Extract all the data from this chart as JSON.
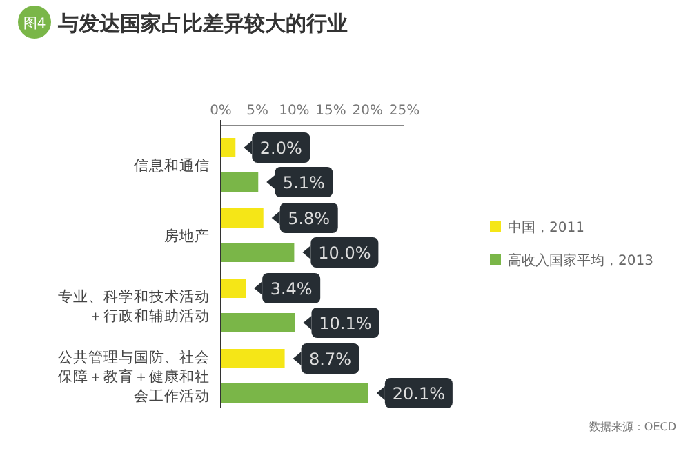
{
  "chart_data": {
    "type": "bar",
    "orientation": "horizontal",
    "title": "与发达国家占比差异较大的行业",
    "annotations": [
      "图4",
      "数据来源：OECD"
    ],
    "categories": [
      "信息和通信",
      "房地产",
      "专业、科学和技术活动＋行政和辅助活动",
      "公共管理与国防、社会保障＋教育＋健康和社会工作活动"
    ],
    "series": [
      {
        "name": "中国，2011",
        "color": "#f5e617",
        "values": [
          2.0,
          5.8,
          3.4,
          8.7
        ],
        "value_labels": [
          "2.0%",
          "5.8%",
          "3.4%",
          "8.7%"
        ]
      },
      {
        "name": "高收入国家平均，2013",
        "color": "#7ab648",
        "values": [
          5.1,
          10.0,
          10.1,
          20.1
        ],
        "value_labels": [
          "5.1%",
          "10.0%",
          "10.1%",
          "20.1%"
        ]
      }
    ],
    "xlim": [
      0,
      25
    ],
    "xticks": [
      {
        "value": 0,
        "label": "0%"
      },
      {
        "value": 5,
        "label": "5%"
      },
      {
        "value": 10,
        "label": "10%"
      },
      {
        "value": 15,
        "label": "15%"
      },
      {
        "value": 20,
        "label": "20%"
      },
      {
        "value": 25,
        "label": "25%"
      }
    ],
    "legend": "right"
  }
}
